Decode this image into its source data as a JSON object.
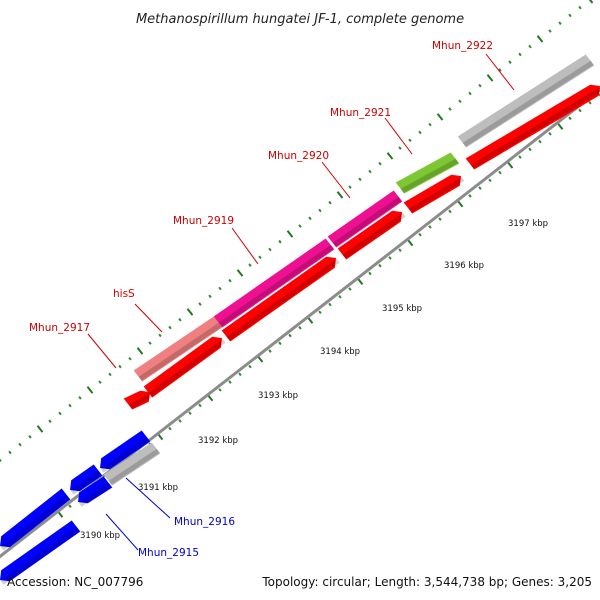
{
  "title": "Methanospirillum hungatei JF-1, complete genome",
  "footer": {
    "accession": "Accession: NC_007796",
    "summary": "Topology: circular; Length: 3,544,738 bp; Genes: 3,205"
  },
  "colors": {
    "backbone": "#8c8c8c",
    "tick_major": "#1f7a1f",
    "tick_minor": "#2e8b2e",
    "label_forward": "#cc0000",
    "label_reverse": "#0000cc",
    "cds_forward": "#ff0000",
    "cds_reverse": "#0000ff",
    "gene_gray": "#bdbdbd",
    "gene_pink": "#f08080",
    "gene_magenta": "#ee1090",
    "gene_green": "#7dc832"
  },
  "ticks": [
    {
      "label": "3190 kbp",
      "kbp": 3190
    },
    {
      "label": "3191 kbp",
      "kbp": 3191
    },
    {
      "label": "3192 kbp",
      "kbp": 3192
    },
    {
      "label": "3193 kbp",
      "kbp": 3193
    },
    {
      "label": "3194 kbp",
      "kbp": 3194
    },
    {
      "label": "3195 kbp",
      "kbp": 3195
    },
    {
      "label": "3196 kbp",
      "kbp": 3196
    },
    {
      "label": "3197 kbp",
      "kbp": 3197
    }
  ],
  "genes": [
    {
      "label": "Mhun_2917",
      "strand": "forward"
    },
    {
      "label": "hisS",
      "strand": "forward"
    },
    {
      "label": "Mhun_2919",
      "strand": "forward"
    },
    {
      "label": "Mhun_2920",
      "strand": "forward"
    },
    {
      "label": "Mhun_2921",
      "strand": "forward"
    },
    {
      "label": "Mhun_2922",
      "strand": "forward"
    },
    {
      "label": "Mhun_2916",
      "strand": "reverse"
    },
    {
      "label": "Mhun_2915",
      "strand": "reverse"
    }
  ]
}
